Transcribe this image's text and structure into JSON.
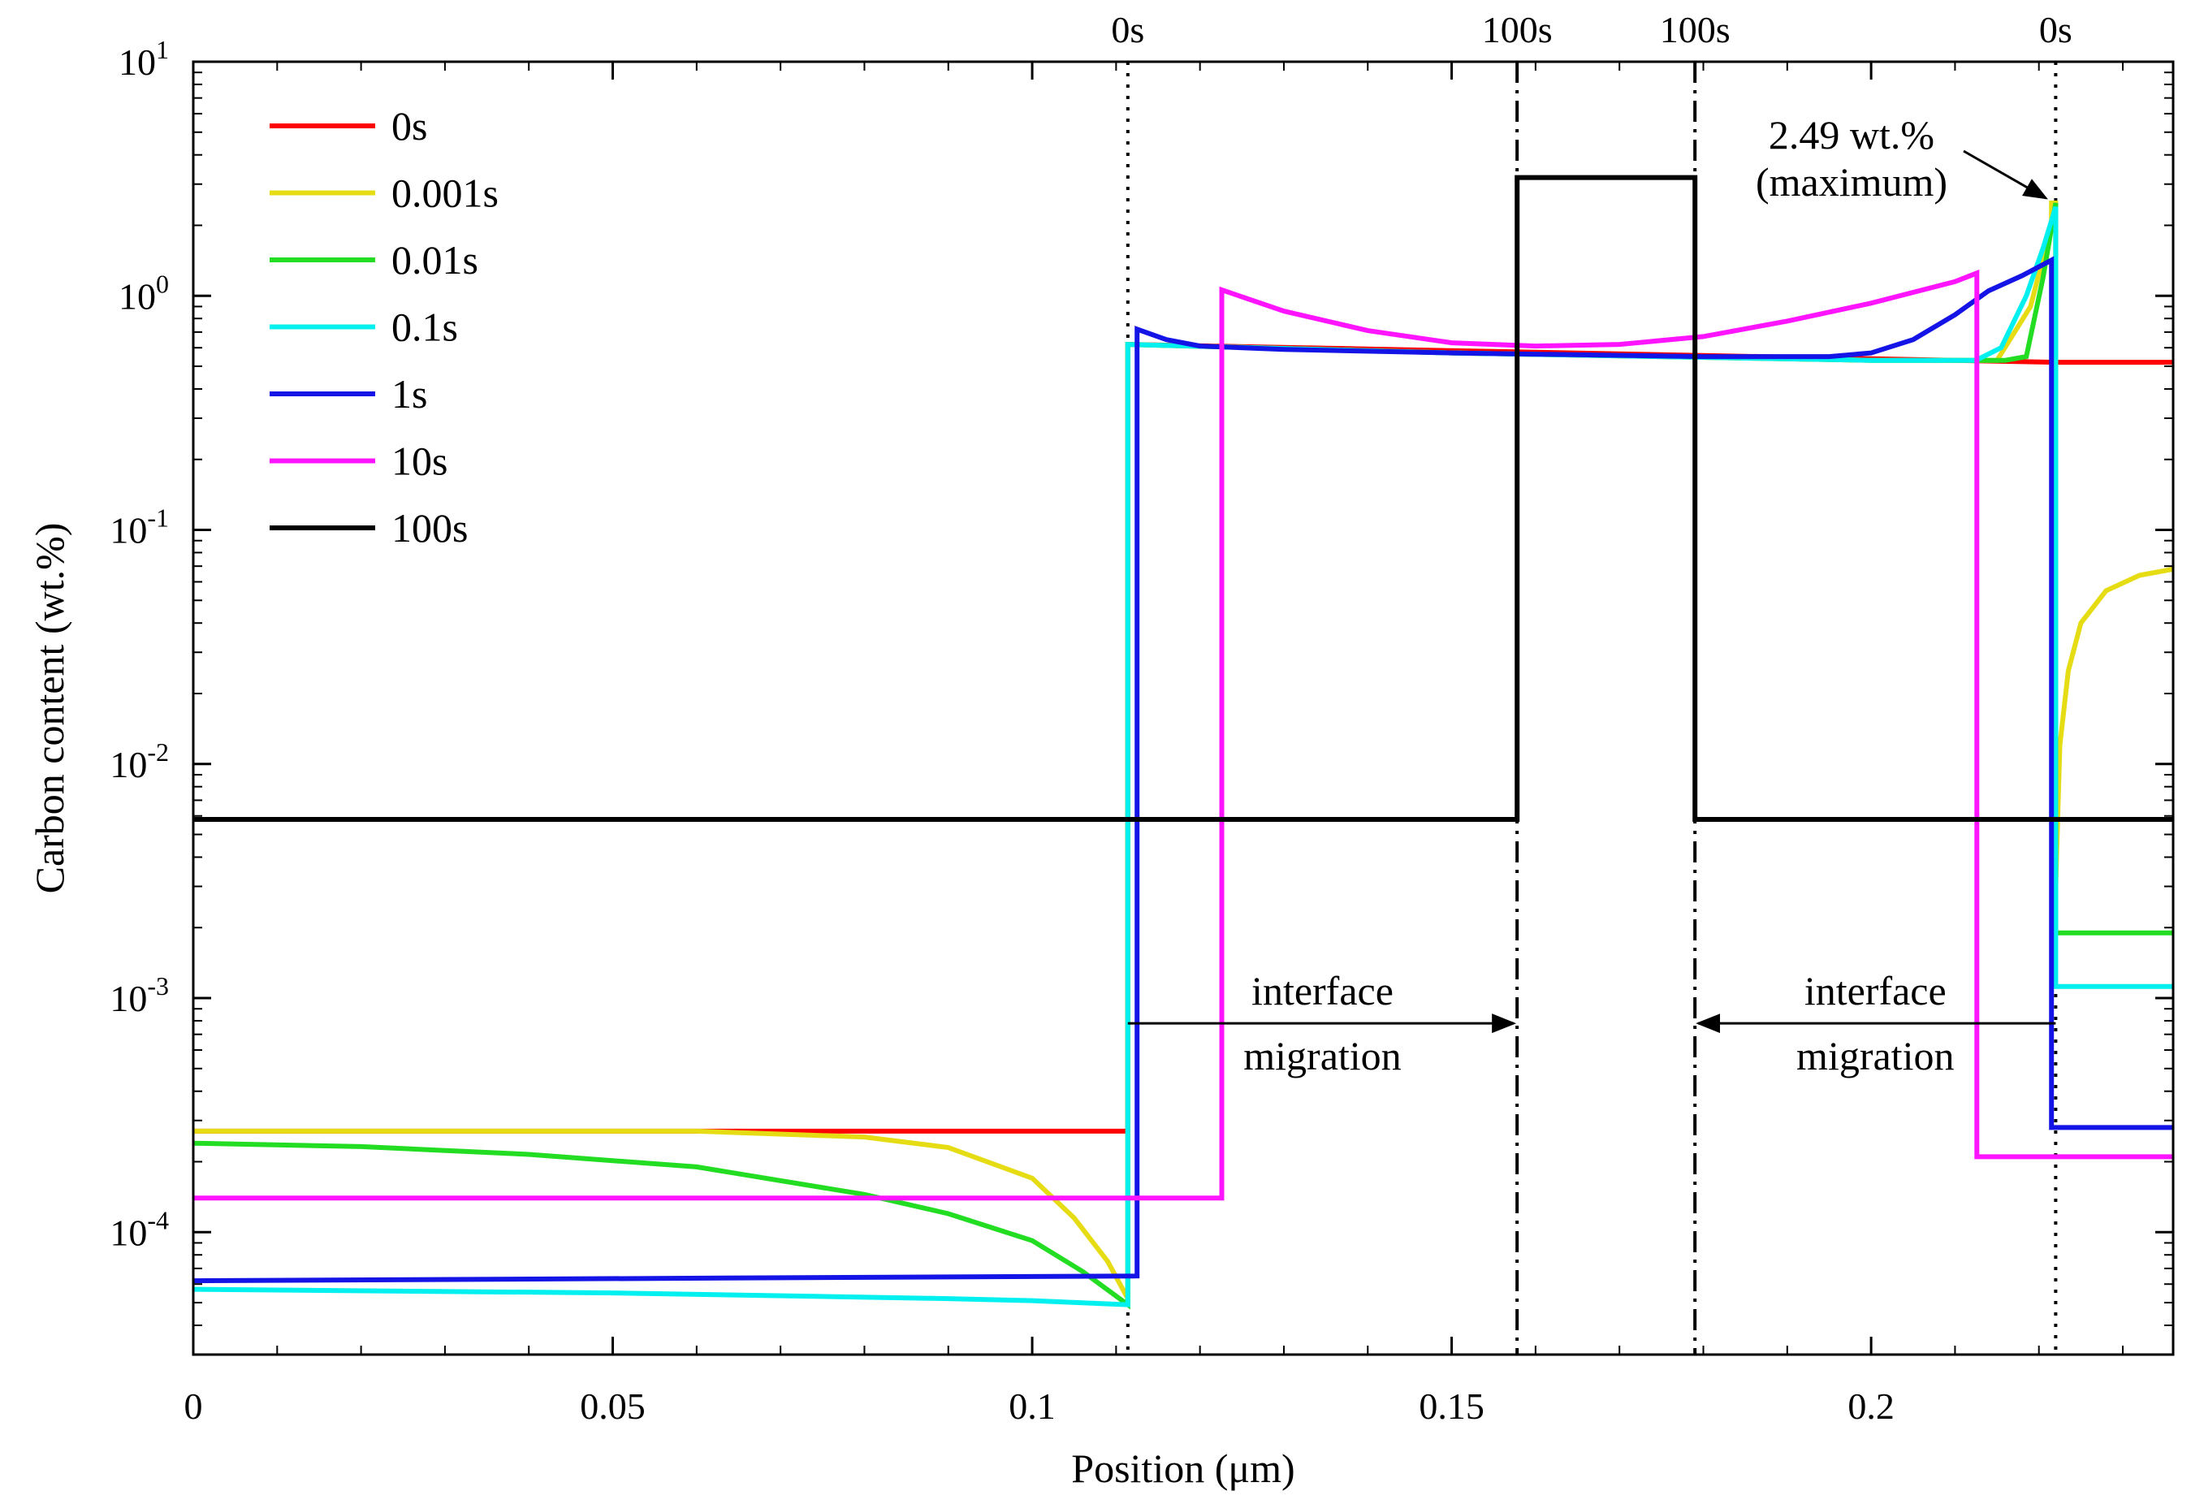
{
  "chart_data": {
    "type": "line",
    "yscale": "log",
    "xlabel": "Position (μm)",
    "ylabel": "Carbon content (wt.%)",
    "xlim": [
      0,
      0.236
    ],
    "ylim": [
      3e-05,
      10
    ],
    "x_ticks": [
      0,
      0.05,
      0.1,
      0.15,
      0.2
    ],
    "x_tick_labels": [
      "0",
      "0.05",
      "0.1",
      "0.15",
      "0.2"
    ],
    "y_ticks": [
      10,
      1,
      0.1,
      0.01,
      0.001,
      0.0001
    ],
    "y_tick_labels": [
      {
        "base": "10",
        "exp": "1"
      },
      {
        "base": "10",
        "exp": "0"
      },
      {
        "base": "10",
        "exp": "-1"
      },
      {
        "base": "10",
        "exp": "-2"
      },
      {
        "base": "10",
        "exp": "-3"
      },
      {
        "base": "10",
        "exp": "-4"
      }
    ],
    "legend_position": "top-left",
    "series": [
      {
        "name": "0s",
        "color": "#ff0000",
        "points": [
          [
            0,
            0.00027
          ],
          [
            0.1114,
            0.00027
          ],
          [
            0.1114,
            0.00027
          ],
          [
            0.1114,
            0.62
          ],
          [
            0.222,
            0.52
          ],
          [
            0.222,
            0.52
          ],
          [
            0.236,
            0.52
          ]
        ]
      },
      {
        "name": "0.001s",
        "color": "#e6dc14",
        "points": [
          [
            0,
            0.00027
          ],
          [
            0.06,
            0.00027
          ],
          [
            0.08,
            0.000255
          ],
          [
            0.09,
            0.00023
          ],
          [
            0.1,
            0.00017
          ],
          [
            0.105,
            0.000115
          ],
          [
            0.109,
            7.5e-05
          ],
          [
            0.1114,
            5.2e-05
          ],
          [
            0.1114,
            0.62
          ],
          [
            0.15,
            0.57
          ],
          [
            0.2,
            0.53
          ],
          [
            0.215,
            0.53
          ],
          [
            0.219,
            0.9
          ],
          [
            0.2215,
            2.0
          ],
          [
            0.2215,
            2.49
          ],
          [
            0.222,
            2.49
          ],
          [
            0.222,
            0.003
          ],
          [
            0.2225,
            0.012
          ],
          [
            0.2235,
            0.025
          ],
          [
            0.225,
            0.04
          ],
          [
            0.228,
            0.055
          ],
          [
            0.232,
            0.064
          ],
          [
            0.236,
            0.068
          ]
        ]
      },
      {
        "name": "0.01s",
        "color": "#22dd22",
        "points": [
          [
            0,
            0.00024
          ],
          [
            0.02,
            0.000232
          ],
          [
            0.04,
            0.000215
          ],
          [
            0.06,
            0.00019
          ],
          [
            0.08,
            0.000145
          ],
          [
            0.09,
            0.00012
          ],
          [
            0.1,
            9.2e-05
          ],
          [
            0.106,
            6.8e-05
          ],
          [
            0.1114,
            4.9e-05
          ],
          [
            0.1114,
            0.62
          ],
          [
            0.15,
            0.57
          ],
          [
            0.2,
            0.53
          ],
          [
            0.216,
            0.53
          ],
          [
            0.2185,
            0.55
          ],
          [
            0.2205,
            1.2
          ],
          [
            0.222,
            2.49
          ],
          [
            0.222,
            0.0019
          ],
          [
            0.236,
            0.0019
          ]
        ]
      },
      {
        "name": "0.1s",
        "color": "#00f0f0",
        "points": [
          [
            0,
            5.7e-05
          ],
          [
            0.05,
            5.5e-05
          ],
          [
            0.09,
            5.2e-05
          ],
          [
            0.1,
            5.1e-05
          ],
          [
            0.1114,
            4.9e-05
          ],
          [
            0.1114,
            0.62
          ],
          [
            0.15,
            0.57
          ],
          [
            0.2,
            0.53
          ],
          [
            0.2125,
            0.53
          ],
          [
            0.2155,
            0.6
          ],
          [
            0.2185,
            1.0
          ],
          [
            0.2205,
            1.6
          ],
          [
            0.222,
            2.4
          ],
          [
            0.222,
            0.00112
          ],
          [
            0.236,
            0.00112
          ]
        ]
      },
      {
        "name": "1s",
        "color": "#1414e6",
        "points": [
          [
            0,
            6.2e-05
          ],
          [
            0.1125,
            6.5e-05
          ],
          [
            0.1125,
            0.72
          ],
          [
            0.116,
            0.65
          ],
          [
            0.12,
            0.61
          ],
          [
            0.13,
            0.59
          ],
          [
            0.15,
            0.57
          ],
          [
            0.18,
            0.55
          ],
          [
            0.195,
            0.55
          ],
          [
            0.2,
            0.57
          ],
          [
            0.205,
            0.65
          ],
          [
            0.21,
            0.83
          ],
          [
            0.214,
            1.05
          ],
          [
            0.218,
            1.22
          ],
          [
            0.2215,
            1.42
          ],
          [
            0.2215,
            0.00028
          ],
          [
            0.236,
            0.00028
          ]
        ]
      },
      {
        "name": "10s",
        "color": "#ff14ff",
        "points": [
          [
            0,
            0.00014
          ],
          [
            0.1226,
            0.00014
          ],
          [
            0.1226,
            1.06
          ],
          [
            0.13,
            0.86
          ],
          [
            0.14,
            0.71
          ],
          [
            0.15,
            0.63
          ],
          [
            0.16,
            0.61
          ],
          [
            0.17,
            0.62
          ],
          [
            0.18,
            0.67
          ],
          [
            0.19,
            0.78
          ],
          [
            0.2,
            0.93
          ],
          [
            0.21,
            1.15
          ],
          [
            0.2126,
            1.25
          ],
          [
            0.2126,
            0.00021
          ],
          [
            0.236,
            0.00021
          ]
        ]
      },
      {
        "name": "100s",
        "color": "#000000",
        "points": [
          [
            0,
            0.0058
          ],
          [
            0.1578,
            0.0058
          ],
          [
            0.1578,
            3.2
          ],
          [
            0.179,
            3.2
          ],
          [
            0.179,
            0.0058
          ],
          [
            0.236,
            0.0058
          ]
        ]
      }
    ],
    "vlines": [
      {
        "x": 0.1114,
        "style": "dotted",
        "label": "0s"
      },
      {
        "x": 0.1578,
        "style": "dashdot",
        "label": "100s"
      },
      {
        "x": 0.179,
        "style": "dashdot",
        "label": "100s"
      },
      {
        "x": 0.222,
        "style": "dotted",
        "label": "0s"
      }
    ],
    "annotations": [
      {
        "id": "max",
        "lines": [
          "2.49 wt.%",
          "(maximum)"
        ],
        "points_to": [
          0.222,
          2.49
        ]
      },
      {
        "id": "mig-left",
        "lines": [
          "interface",
          "migration"
        ],
        "from_x": 0.1114,
        "to_x": 0.1578,
        "y": 0.00078
      },
      {
        "id": "mig-right",
        "lines": [
          "interface",
          "migration"
        ],
        "from_x": 0.222,
        "to_x": 0.179,
        "y": 0.00078
      }
    ]
  }
}
